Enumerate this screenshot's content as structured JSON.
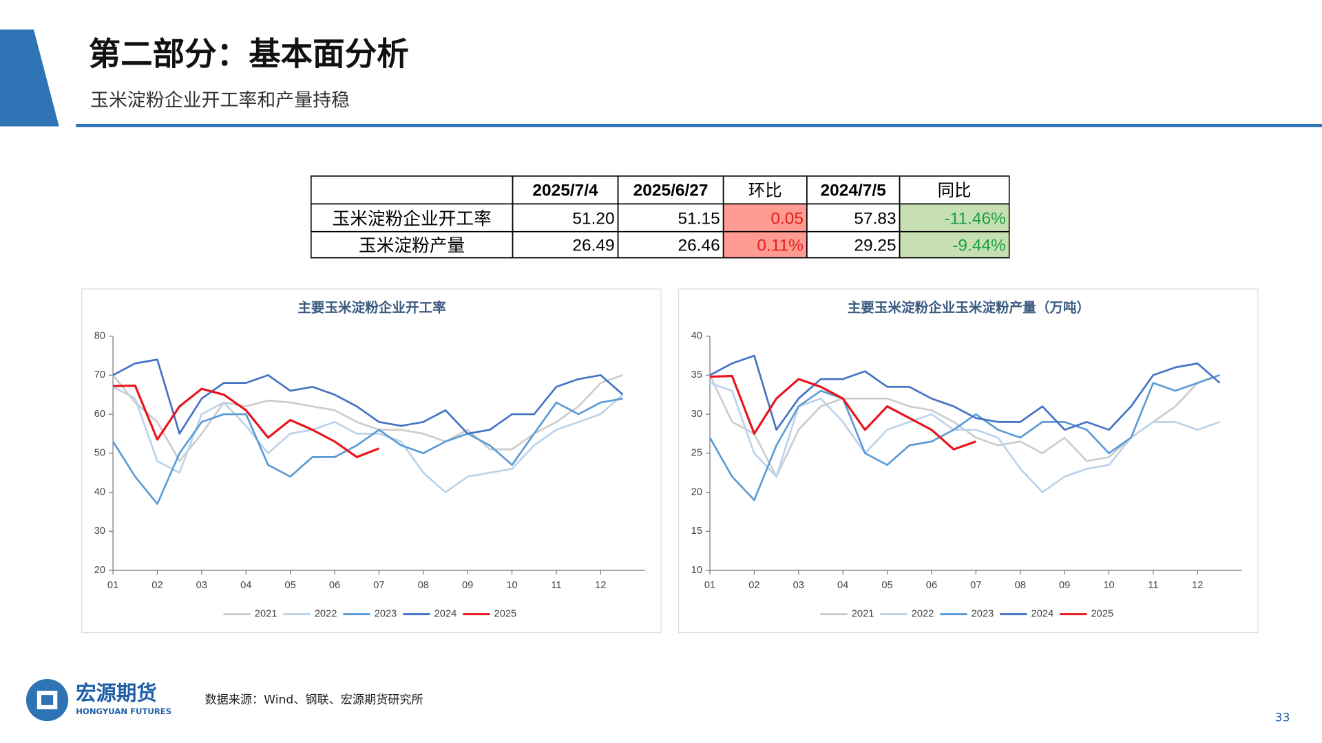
{
  "header": {
    "title": "第二部分：基本面分析",
    "subtitle": "玉米淀粉企业开工率和产量持稳"
  },
  "table": {
    "columns": [
      "2025/7/4",
      "2025/6/27",
      "环比",
      "2024/7/5",
      "同比"
    ],
    "rows": [
      {
        "label": "玉米淀粉企业开工率",
        "cells": [
          "51.20",
          "51.15",
          "0.05",
          "57.83",
          "-11.46%"
        ]
      },
      {
        "label": "玉米淀粉产量",
        "cells": [
          "26.49",
          "26.46",
          "0.11%",
          "29.25",
          "-9.44%"
        ]
      }
    ]
  },
  "chart_data": [
    {
      "type": "line",
      "title": "主要玉米淀粉企业开工率",
      "x": [
        1,
        1.5,
        2,
        2.5,
        3,
        3.5,
        4,
        4.5,
        5,
        5.5,
        6,
        6.5,
        7,
        7.5,
        8,
        8.5,
        9,
        9.5,
        10,
        10.5,
        11,
        11.5,
        12,
        12.5
      ],
      "xlim": [
        1,
        13
      ],
      "xticks": [
        {
          "value": 1,
          "label": "01"
        },
        {
          "value": 2,
          "label": "02"
        },
        {
          "value": 3,
          "label": "03"
        },
        {
          "value": 4,
          "label": "04"
        },
        {
          "value": 5,
          "label": "05"
        },
        {
          "value": 6,
          "label": "06"
        },
        {
          "value": 7,
          "label": "07"
        },
        {
          "value": 8,
          "label": "08"
        },
        {
          "value": 9,
          "label": "09"
        },
        {
          "value": 10,
          "label": "10"
        },
        {
          "value": 11,
          "label": "11"
        },
        {
          "value": 12,
          "label": "12"
        }
      ],
      "ylim": [
        20,
        80
      ],
      "yticks": [
        20,
        30,
        40,
        50,
        60,
        70,
        80
      ],
      "series": [
        {
          "name": "2021",
          "color": "#cccccc",
          "values": [
            70,
            63,
            58,
            48,
            55,
            63,
            62,
            63.5,
            63,
            62,
            61,
            58,
            56,
            56,
            55,
            53,
            56,
            51,
            51,
            55,
            58,
            62,
            68,
            70
          ]
        },
        {
          "name": "2022",
          "color": "#bcd3ea",
          "values": [
            67,
            64,
            48,
            45,
            60,
            63,
            57,
            50,
            55,
            56,
            58,
            55,
            55,
            53,
            45,
            40,
            44,
            45,
            46,
            52,
            56,
            58,
            60,
            65
          ]
        },
        {
          "name": "2023",
          "color": "#5b9bd5",
          "values": [
            53,
            44,
            37,
            50,
            58,
            60,
            60,
            47,
            44,
            49,
            49,
            52,
            56,
            52,
            50,
            53,
            55,
            52,
            47,
            55,
            63,
            60,
            63,
            64
          ]
        },
        {
          "name": "2024",
          "color": "#4472c4",
          "values": [
            70,
            73,
            74,
            55,
            64,
            68,
            68,
            70,
            66,
            67,
            65,
            62,
            58,
            57,
            58,
            61,
            55,
            56,
            60,
            60,
            67,
            69,
            70,
            65
          ]
        },
        {
          "name": "2025",
          "color": "#e8141c",
          "values": [
            67.2,
            67.3,
            53.5,
            62,
            66.5,
            65,
            61,
            54,
            58.5,
            56,
            53,
            49,
            51.2,
            null,
            null,
            null,
            null,
            null,
            null,
            null,
            null,
            null,
            null,
            null
          ]
        }
      ]
    },
    {
      "type": "line",
      "title": "主要玉米淀粉企业玉米淀粉产量（万吨）",
      "x": [
        1,
        1.5,
        2,
        2.5,
        3,
        3.5,
        4,
        4.5,
        5,
        5.5,
        6,
        6.5,
        7,
        7.5,
        8,
        8.5,
        9,
        9.5,
        10,
        10.5,
        11,
        11.5,
        12,
        12.5
      ],
      "xlim": [
        1,
        13
      ],
      "xticks": [
        {
          "value": 1,
          "label": "01"
        },
        {
          "value": 2,
          "label": "02"
        },
        {
          "value": 3,
          "label": "03"
        },
        {
          "value": 4,
          "label": "04"
        },
        {
          "value": 5,
          "label": "05"
        },
        {
          "value": 6,
          "label": "06"
        },
        {
          "value": 7,
          "label": "07"
        },
        {
          "value": 8,
          "label": "08"
        },
        {
          "value": 9,
          "label": "09"
        },
        {
          "value": 10,
          "label": "10"
        },
        {
          "value": 11,
          "label": "11"
        },
        {
          "value": 12,
          "label": "12"
        }
      ],
      "ylim": [
        10,
        40
      ],
      "yticks": [
        10,
        15,
        20,
        25,
        30,
        35,
        40
      ],
      "series": [
        {
          "name": "2021",
          "color": "#cccccc",
          "values": [
            35,
            29,
            27.5,
            22,
            28,
            31,
            32,
            32,
            32,
            31,
            30.5,
            29,
            27,
            26,
            26.5,
            25,
            27,
            24,
            24.5,
            27,
            29,
            31,
            34,
            35
          ]
        },
        {
          "name": "2022",
          "color": "#bcd3ea",
          "values": [
            34,
            33,
            25,
            22,
            31,
            32,
            29,
            25,
            28,
            29,
            30,
            28,
            28,
            27,
            23,
            20,
            22,
            23,
            23.5,
            27,
            29,
            29,
            28,
            29
          ]
        },
        {
          "name": "2023",
          "color": "#5b9bd5",
          "values": [
            27,
            22,
            19,
            26,
            31,
            33,
            32,
            25,
            23.5,
            26,
            26.5,
            28,
            30,
            28,
            27,
            29,
            29,
            28,
            25,
            27,
            34,
            33,
            34,
            35
          ]
        },
        {
          "name": "2024",
          "color": "#4472c4",
          "values": [
            35,
            36.5,
            37.5,
            28,
            32,
            34.5,
            34.5,
            35.5,
            33.5,
            33.5,
            32,
            31,
            29.5,
            29,
            29,
            31,
            28,
            29,
            28,
            31,
            35,
            36,
            36.5,
            34
          ]
        },
        {
          "name": "2025",
          "color": "#e8141c",
          "values": [
            34.8,
            34.9,
            27.5,
            32,
            34.5,
            33.5,
            32,
            28,
            31,
            29.5,
            28,
            25.5,
            26.5,
            null,
            null,
            null,
            null,
            null,
            null,
            null,
            null,
            null,
            null,
            null
          ]
        }
      ]
    }
  ],
  "footer": {
    "logo": "宏源期货",
    "logo_en": "HONGYUAN FUTURES",
    "source": "数据来源：Wind、钢联、宏源期货研究所",
    "page": "33"
  }
}
